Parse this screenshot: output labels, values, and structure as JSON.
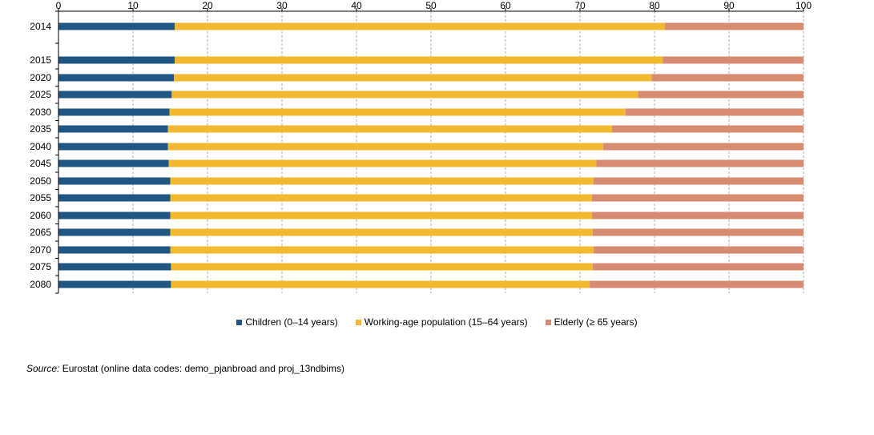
{
  "chart_data": {
    "type": "bar",
    "orientation": "horizontal",
    "stacked": true,
    "categories": [
      "2014",
      "2015",
      "2020",
      "2025",
      "2030",
      "2035",
      "2040",
      "2045",
      "2050",
      "2055",
      "2060",
      "2065",
      "2070",
      "2075",
      "2080"
    ],
    "series": [
      {
        "name": "Children (0–14 years)",
        "color": "#1f5683",
        "values": [
          15.6,
          15.6,
          15.5,
          15.2,
          14.9,
          14.7,
          14.7,
          14.8,
          15.0,
          15.0,
          15.0,
          15.0,
          15.0,
          15.1,
          15.1
        ]
      },
      {
        "name": "Working-age population (15–64 years)",
        "color": "#f2b830",
        "values": [
          65.8,
          65.5,
          64.1,
          62.6,
          61.2,
          59.6,
          58.4,
          57.4,
          56.8,
          56.6,
          56.6,
          56.7,
          56.8,
          56.6,
          56.2
        ]
      },
      {
        "name": "Elderly (≥ 65 years)",
        "color": "#d88b73",
        "values": [
          18.6,
          18.9,
          20.4,
          22.2,
          23.9,
          25.7,
          26.9,
          27.8,
          28.2,
          28.4,
          28.4,
          28.3,
          28.2,
          28.3,
          28.7
        ]
      }
    ],
    "xlim": [
      0,
      100
    ],
    "xticks": [
      0,
      10,
      20,
      30,
      40,
      50,
      60,
      70,
      80,
      90,
      100
    ],
    "xaxis_position": "top",
    "grid": true,
    "legend_position": "bottom"
  },
  "source": {
    "label": "Source:",
    "text": "Eurostat (online data codes: demo_pjanbroad and proj_13ndbims)"
  }
}
